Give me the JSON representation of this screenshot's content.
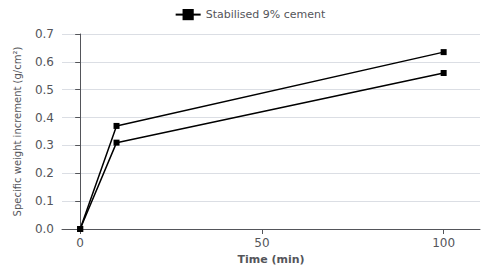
{
  "chart_data": {
    "type": "line",
    "xlabel": "Time (min)",
    "ylabel": "Specific weight increment (g/cm²)",
    "x": [
      0,
      10,
      100
    ],
    "series": [
      {
        "name": "Stabilised 9% cement",
        "color": "#000000",
        "marker": "square",
        "values": [
          0.0,
          0.37,
          0.635
        ]
      },
      {
        "name": "Stabilised 9% cement",
        "color": "#000000",
        "marker": "square",
        "values": [
          0.0,
          0.31,
          0.56
        ]
      }
    ],
    "xlim": [
      -5,
      110
    ],
    "xticks": [
      0,
      50,
      100
    ],
    "ylim": [
      0,
      0.7
    ],
    "yticks": [
      {
        "value": 0.0,
        "label": "0.0"
      },
      0.1,
      0.2,
      0.3,
      0.4,
      0.5,
      0.6,
      0.7
    ],
    "grid": "y",
    "legend": "top"
  }
}
